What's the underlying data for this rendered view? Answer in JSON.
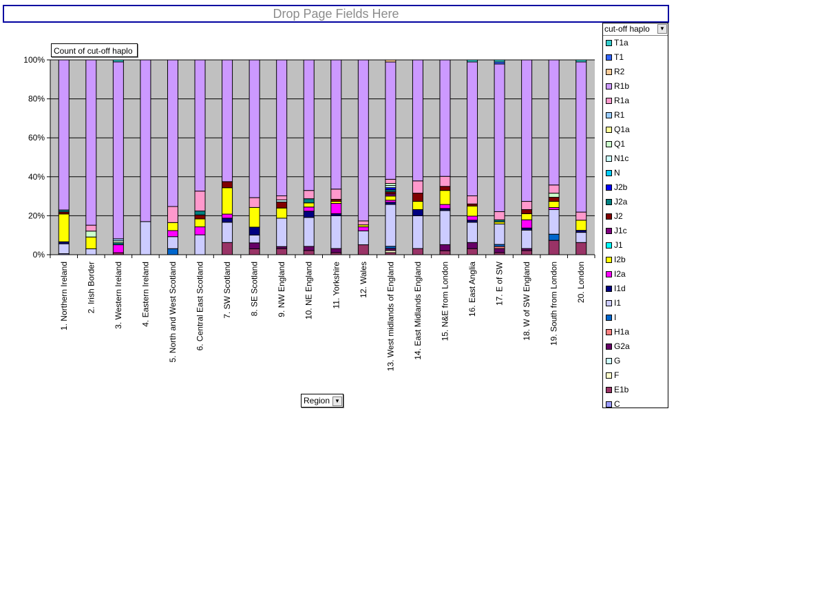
{
  "page_fields": {
    "drop_text": "Drop Page Fields Here"
  },
  "data_field": {
    "label": "Count of cut-off haplo"
  },
  "legend": {
    "title": "cut-off haplo",
    "dropdown_icon": "chevron-down-icon"
  },
  "row_field": {
    "label": "Region",
    "dropdown_icon": "chevron-down-icon"
  },
  "colors": {
    "plot_background": "#c0c0c0",
    "gridline": "#000000"
  },
  "chart_data": {
    "type": "bar",
    "stacked": "percent",
    "title": "",
    "xlabel": "",
    "ylabel": "",
    "ylim": [
      0,
      100
    ],
    "yticks": [
      "0%",
      "20%",
      "40%",
      "60%",
      "80%",
      "100%"
    ],
    "grid": true,
    "legend_position": "right",
    "categories": [
      "1. Northern Ireland",
      "2. Irish Border",
      "3. Western Ireland",
      "4. Eastern Ireland",
      "5. North and West Scotland",
      "6. Central East Scotland",
      "7. SW Scotland",
      "8. SE Scotland",
      "9. NW England",
      "10. NE England",
      "11. Yorkshire",
      "12. Wales",
      "13. West midlands of England",
      "14. East Midlands England",
      "15. N&E from London",
      "16. East Anglia",
      "17. E of SW",
      "18. W of SW England",
      "19. South from London",
      "20. London"
    ],
    "series": [
      {
        "name": "C",
        "color": "#9999ff",
        "values": [
          0.5,
          0,
          0,
          0,
          0,
          0,
          0,
          0,
          0,
          0,
          0,
          0,
          0,
          0,
          0,
          0,
          0,
          0,
          0,
          0
        ]
      },
      {
        "name": "E1b",
        "color": "#993366",
        "values": [
          0,
          0,
          1,
          0,
          0,
          0,
          6,
          3,
          3,
          2,
          1,
          5,
          1,
          3,
          2,
          3,
          1,
          2,
          7,
          6
        ]
      },
      {
        "name": "F",
        "color": "#ffffcc",
        "values": [
          0,
          0,
          0,
          0,
          0,
          0,
          0,
          0,
          0,
          0,
          0,
          0,
          1,
          0,
          0,
          0,
          0,
          0,
          0,
          0
        ]
      },
      {
        "name": "G",
        "color": "#ccffff",
        "values": [
          0,
          0,
          0,
          0,
          0,
          0,
          0,
          0,
          0,
          0,
          0,
          0,
          0,
          0,
          0,
          0,
          0,
          0,
          0,
          0
        ]
      },
      {
        "name": "G2a",
        "color": "#660066",
        "values": [
          0,
          0,
          0,
          0,
          0,
          0,
          0,
          3,
          1,
          2,
          2,
          0,
          1,
          0,
          3,
          3,
          2,
          1,
          0,
          0
        ]
      },
      {
        "name": "H1a",
        "color": "#ff8080",
        "values": [
          0,
          0,
          0,
          0,
          0,
          0,
          0,
          0,
          0,
          0,
          0,
          0,
          0,
          0,
          0,
          0,
          1,
          0,
          0,
          0
        ]
      },
      {
        "name": "I",
        "color": "#0066cc",
        "values": [
          0,
          0,
          0,
          0,
          3,
          0,
          0,
          0,
          0,
          0,
          0,
          0,
          1,
          0,
          0,
          0,
          1,
          0,
          3,
          0
        ]
      },
      {
        "name": "I1",
        "color": "#ccccff",
        "values": [
          5,
          3,
          0,
          17,
          6,
          10,
          10,
          4,
          14,
          14,
          16,
          7,
          20,
          16,
          17,
          10,
          10,
          9,
          12,
          5
        ]
      },
      {
        "name": "I1d",
        "color": "#000080",
        "values": [
          1,
          0,
          0,
          0,
          0,
          0,
          2,
          4,
          0,
          3,
          1,
          0,
          1,
          3,
          1,
          1,
          0,
          1,
          0,
          1
        ]
      },
      {
        "name": "I2a",
        "color": "#ff00ff",
        "values": [
          0,
          0,
          4,
          0,
          3,
          4,
          2,
          0,
          0,
          2,
          5,
          2,
          1,
          0,
          2,
          2,
          0,
          4,
          1,
          0
        ]
      },
      {
        "name": "I2b",
        "color": "#ffff00",
        "values": [
          14,
          6,
          0,
          0,
          4,
          4,
          13,
          10,
          5,
          2,
          1,
          1,
          2,
          4,
          7,
          5,
          1,
          3,
          3,
          5
        ]
      },
      {
        "name": "J1",
        "color": "#00ffff",
        "values": [
          0,
          0,
          0,
          0,
          0,
          0,
          0,
          0,
          0,
          0,
          0,
          0,
          0,
          0,
          0,
          0,
          0,
          0,
          0,
          0
        ]
      },
      {
        "name": "J1c",
        "color": "#800080",
        "values": [
          0,
          0,
          0,
          0,
          0,
          0,
          0,
          0,
          0,
          0,
          0,
          0,
          1,
          0,
          0,
          0,
          0,
          0,
          0,
          0
        ]
      },
      {
        "name": "J2",
        "color": "#800000",
        "values": [
          1,
          0,
          0,
          0,
          0,
          2,
          3,
          0,
          3,
          0,
          1,
          0,
          1,
          4,
          2,
          1,
          0,
          2,
          2,
          0
        ]
      },
      {
        "name": "J2a",
        "color": "#008080",
        "values": [
          1,
          0,
          1,
          0,
          0,
          2,
          0,
          0,
          0,
          2,
          0,
          0,
          1,
          0,
          0,
          0,
          1,
          0,
          0,
          0
        ]
      },
      {
        "name": "J2b",
        "color": "#0000ff",
        "values": [
          0,
          0,
          0,
          0,
          0,
          0,
          0,
          0,
          0,
          0,
          0,
          0,
          1,
          0,
          0,
          0,
          0,
          0,
          0,
          0
        ]
      },
      {
        "name": "N",
        "color": "#00ccff",
        "values": [
          0,
          0,
          0,
          0,
          0,
          0,
          0,
          0,
          0,
          0,
          0,
          0,
          0,
          0,
          0,
          0,
          0,
          0,
          0,
          0
        ]
      },
      {
        "name": "N1c",
        "color": "#ccffff",
        "values": [
          0,
          0,
          0,
          0,
          0,
          0,
          0,
          0,
          1,
          0,
          0,
          0,
          1,
          0,
          0,
          0,
          0,
          0,
          0,
          0
        ]
      },
      {
        "name": "Q1",
        "color": "#ccffcc",
        "values": [
          0,
          3,
          1,
          0,
          0,
          0,
          0,
          0,
          0,
          0,
          0,
          0,
          1,
          0,
          0,
          0,
          0,
          0,
          2,
          0
        ]
      },
      {
        "name": "Q1a",
        "color": "#ffff99",
        "values": [
          0,
          0,
          0,
          0,
          0,
          0,
          0,
          0,
          0,
          0,
          0,
          0,
          0,
          0,
          0,
          0,
          0,
          0,
          0,
          0
        ]
      },
      {
        "name": "R1",
        "color": "#99ccff",
        "values": [
          0,
          0,
          1,
          0,
          0,
          0,
          0,
          0,
          0,
          0,
          0,
          0,
          0,
          0,
          0,
          0,
          0,
          0,
          0,
          0
        ]
      },
      {
        "name": "R1a",
        "color": "#ff99cc",
        "values": [
          0,
          3,
          0,
          0,
          8,
          10,
          0,
          5,
          2,
          4,
          5,
          2,
          2,
          6,
          5,
          4,
          4,
          4,
          4,
          4
        ]
      },
      {
        "name": "R1b",
        "color": "#cc99ff",
        "values": [
          75.5,
          84,
          89,
          83,
          73,
          66,
          60,
          70,
          67,
          63,
          63,
          81,
          56,
          59,
          58,
          66,
          72,
          69,
          61,
          74
        ]
      },
      {
        "name": "R2",
        "color": "#ffcc99",
        "values": [
          0,
          0,
          0,
          0,
          0,
          0,
          0,
          0,
          0,
          0,
          0,
          0,
          1,
          0,
          0,
          0,
          0,
          0,
          0,
          0
        ]
      },
      {
        "name": "T1",
        "color": "#3366ff",
        "values": [
          0,
          0,
          0,
          0,
          0,
          0,
          0,
          0,
          0,
          0,
          0,
          0,
          0,
          0,
          0,
          0,
          1,
          0,
          0,
          0
        ]
      },
      {
        "name": "T1a",
        "color": "#33cccc",
        "values": [
          0,
          0,
          1,
          0,
          0,
          0,
          0,
          0,
          0,
          0,
          0,
          0,
          0,
          0,
          0,
          1,
          1,
          0,
          0,
          1
        ]
      }
    ]
  }
}
